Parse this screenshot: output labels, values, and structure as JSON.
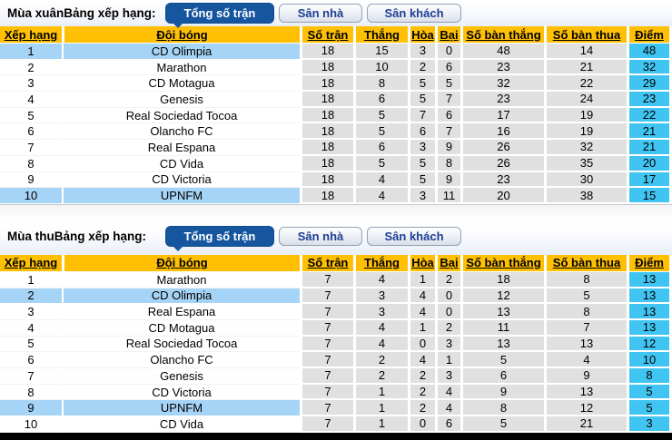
{
  "colors": {
    "header_bg": "#ffc003",
    "points_bg": "#40c5f2",
    "highlight_row_bg": "#a6d4f6",
    "numeric_cell_bg": "#e0e0e0",
    "active_tab_bg": "#15569e",
    "inactive_tab_text": "#1d3e93",
    "bottom_bar": "#000000"
  },
  "tabs": [
    {
      "label": "Tổng số trận",
      "active": true
    },
    {
      "label": "Sân nhà",
      "active": false
    },
    {
      "label": "Sân khách",
      "active": false
    }
  ],
  "columns": [
    "Xếp hạng",
    "Đội bóng",
    "Số trận",
    "Thắng",
    "Hòa",
    "Bại",
    "Số bàn thắng",
    "Số bàn thua",
    "Điểm"
  ],
  "sections": [
    {
      "label": "Mùa xuânBảng xếp hạng:",
      "rows": [
        {
          "rank": "1",
          "team": "CD Olimpia",
          "played": "18",
          "won": "15",
          "drawn": "3",
          "lost": "0",
          "gf": "48",
          "ga": "14",
          "pts": "48",
          "highlight": true
        },
        {
          "rank": "2",
          "team": "Marathon",
          "played": "18",
          "won": "10",
          "drawn": "2",
          "lost": "6",
          "gf": "23",
          "ga": "21",
          "pts": "32",
          "highlight": false
        },
        {
          "rank": "3",
          "team": "CD Motagua",
          "played": "18",
          "won": "8",
          "drawn": "5",
          "lost": "5",
          "gf": "32",
          "ga": "22",
          "pts": "29",
          "highlight": false
        },
        {
          "rank": "4",
          "team": "Genesis",
          "played": "18",
          "won": "6",
          "drawn": "5",
          "lost": "7",
          "gf": "23",
          "ga": "24",
          "pts": "23",
          "highlight": false
        },
        {
          "rank": "5",
          "team": "Real Sociedad Tocoa",
          "played": "18",
          "won": "5",
          "drawn": "7",
          "lost": "6",
          "gf": "17",
          "ga": "19",
          "pts": "22",
          "highlight": false
        },
        {
          "rank": "6",
          "team": "Olancho FC",
          "played": "18",
          "won": "5",
          "drawn": "6",
          "lost": "7",
          "gf": "16",
          "ga": "19",
          "pts": "21",
          "highlight": false
        },
        {
          "rank": "7",
          "team": "Real Espana",
          "played": "18",
          "won": "6",
          "drawn": "3",
          "lost": "9",
          "gf": "26",
          "ga": "32",
          "pts": "21",
          "highlight": false
        },
        {
          "rank": "8",
          "team": "CD Vida",
          "played": "18",
          "won": "5",
          "drawn": "5",
          "lost": "8",
          "gf": "26",
          "ga": "35",
          "pts": "20",
          "highlight": false
        },
        {
          "rank": "9",
          "team": "CD Victoria",
          "played": "18",
          "won": "4",
          "drawn": "5",
          "lost": "9",
          "gf": "23",
          "ga": "30",
          "pts": "17",
          "highlight": false
        },
        {
          "rank": "10",
          "team": "UPNFM",
          "played": "18",
          "won": "4",
          "drawn": "3",
          "lost": "11",
          "gf": "20",
          "ga": "38",
          "pts": "15",
          "highlight": true
        }
      ]
    },
    {
      "label": "Mùa thuBảng xếp hạng:",
      "rows": [
        {
          "rank": "1",
          "team": "Marathon",
          "played": "7",
          "won": "4",
          "drawn": "1",
          "lost": "2",
          "gf": "18",
          "ga": "8",
          "pts": "13",
          "highlight": false
        },
        {
          "rank": "2",
          "team": "CD Olimpia",
          "played": "7",
          "won": "3",
          "drawn": "4",
          "lost": "0",
          "gf": "12",
          "ga": "5",
          "pts": "13",
          "highlight": true
        },
        {
          "rank": "3",
          "team": "Real Espana",
          "played": "7",
          "won": "3",
          "drawn": "4",
          "lost": "0",
          "gf": "13",
          "ga": "8",
          "pts": "13",
          "highlight": false
        },
        {
          "rank": "4",
          "team": "CD Motagua",
          "played": "7",
          "won": "4",
          "drawn": "1",
          "lost": "2",
          "gf": "11",
          "ga": "7",
          "pts": "13",
          "highlight": false
        },
        {
          "rank": "5",
          "team": "Real Sociedad Tocoa",
          "played": "7",
          "won": "4",
          "drawn": "0",
          "lost": "3",
          "gf": "13",
          "ga": "13",
          "pts": "12",
          "highlight": false
        },
        {
          "rank": "6",
          "team": "Olancho FC",
          "played": "7",
          "won": "2",
          "drawn": "4",
          "lost": "1",
          "gf": "5",
          "ga": "4",
          "pts": "10",
          "highlight": false
        },
        {
          "rank": "7",
          "team": "Genesis",
          "played": "7",
          "won": "2",
          "drawn": "2",
          "lost": "3",
          "gf": "6",
          "ga": "9",
          "pts": "8",
          "highlight": false
        },
        {
          "rank": "8",
          "team": "CD Victoria",
          "played": "7",
          "won": "1",
          "drawn": "2",
          "lost": "4",
          "gf": "9",
          "ga": "13",
          "pts": "5",
          "highlight": false
        },
        {
          "rank": "9",
          "team": "UPNFM",
          "played": "7",
          "won": "1",
          "drawn": "2",
          "lost": "4",
          "gf": "8",
          "ga": "12",
          "pts": "5",
          "highlight": true
        },
        {
          "rank": "10",
          "team": "CD Vida",
          "played": "7",
          "won": "1",
          "drawn": "0",
          "lost": "6",
          "gf": "5",
          "ga": "21",
          "pts": "3",
          "highlight": false
        }
      ]
    }
  ]
}
